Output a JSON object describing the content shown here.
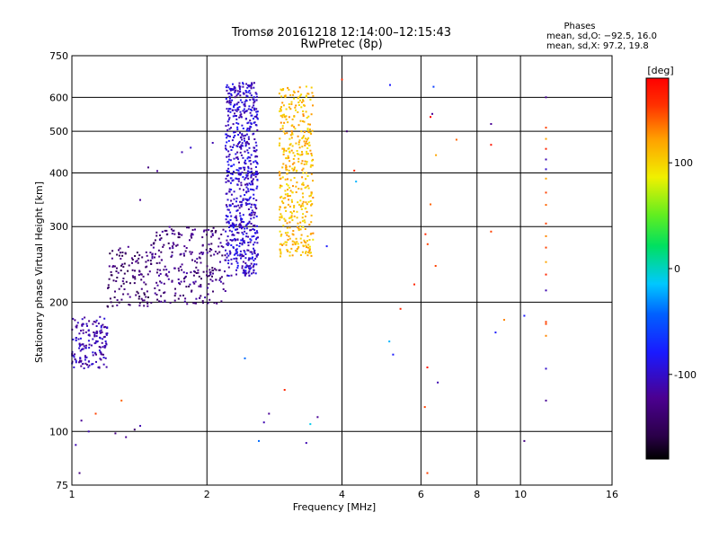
{
  "header": {
    "title": "Tromsø 20161218 12:14:00–12:15:43",
    "subtitle": "RwPretec (8p)"
  },
  "stats": {
    "heading": "Phases",
    "line_o": "mean, sd,O: −92.5, 16.0",
    "line_x": "mean, sd,X:  97.2, 19.8"
  },
  "chart_data": {
    "type": "scatter",
    "xlabel": "Frequency [MHz]",
    "ylabel": "Stationary phase Virtual Height [km]",
    "x_scale": "log",
    "y_scale": "log",
    "xlim": [
      1,
      16
    ],
    "ylim": [
      75,
      750
    ],
    "x_ticks": [
      {
        "v": 1,
        "label": "1"
      },
      {
        "v": 2,
        "label": "2"
      },
      {
        "v": 4,
        "label": "4"
      },
      {
        "v": 6,
        "label": "6"
      },
      {
        "v": 8,
        "label": "8"
      },
      {
        "v": 10,
        "label": "10"
      },
      {
        "v": 16,
        "label": "16"
      }
    ],
    "y_ticks": [
      {
        "v": 75,
        "label": "75"
      },
      {
        "v": 100,
        "label": "100"
      },
      {
        "v": 200,
        "label": "200"
      },
      {
        "v": 300,
        "label": "300"
      },
      {
        "v": 400,
        "label": "400"
      },
      {
        "v": 500,
        "label": "500"
      },
      {
        "v": 600,
        "label": "600"
      },
      {
        "v": 750,
        "label": "750"
      }
    ],
    "grid": true,
    "colorbar": {
      "label": "[deg]",
      "range": [
        -180,
        180
      ],
      "ticks": [
        {
          "v": 100,
          "label": "100"
        },
        {
          "v": 0,
          "label": "0"
        },
        {
          "v": -100,
          "label": "-100"
        }
      ]
    },
    "series": [
      {
        "color_by": "phase_deg",
        "note_blocks": [
          {
            "x": [
              1.0,
              1.2
            ],
            "y": [
              140,
              185
            ],
            "phase": -110,
            "n": 160
          },
          {
            "x": [
              1.2,
              1.5
            ],
            "y": [
              195,
              270
            ],
            "phase": -140,
            "n": 120
          },
          {
            "x": [
              1.5,
              2.2
            ],
            "y": [
              198,
              300
            ],
            "phase": -130,
            "n": 260
          },
          {
            "x": [
              2.2,
              2.6
            ],
            "y": [
              230,
              650
            ],
            "phase": -100,
            "n": 700
          },
          {
            "x": [
              2.9,
              3.45
            ],
            "y": [
              255,
              640
            ],
            "phase": 110,
            "n": 420
          }
        ]
      }
    ],
    "points": [
      [
        1.02,
        93,
        -110
      ],
      [
        1.04,
        80,
        -130
      ],
      [
        1.05,
        106,
        -120
      ],
      [
        1.09,
        100,
        -110
      ],
      [
        1.25,
        99,
        -130
      ],
      [
        1.32,
        97,
        -120
      ],
      [
        1.38,
        101,
        -140
      ],
      [
        1.42,
        103,
        -110
      ],
      [
        1.29,
        118,
        140
      ],
      [
        1.13,
        110,
        150
      ],
      [
        1.42,
        346,
        -120
      ],
      [
        1.48,
        412,
        -130
      ],
      [
        1.55,
        404,
        -120
      ],
      [
        1.76,
        447,
        -110
      ],
      [
        1.84,
        458,
        -100
      ],
      [
        2.06,
        470,
        -110
      ],
      [
        2.43,
        148,
        -40
      ],
      [
        2.61,
        95,
        -40
      ],
      [
        2.68,
        105,
        -110
      ],
      [
        2.75,
        110,
        -120
      ],
      [
        2.98,
        125,
        160
      ],
      [
        3.4,
        104,
        -10
      ],
      [
        3.53,
        108,
        -120
      ],
      [
        3.33,
        94,
        -110
      ],
      [
        3.7,
        270,
        -80
      ],
      [
        4.0,
        660,
        160
      ],
      [
        4.1,
        500,
        -140
      ],
      [
        4.3,
        382,
        -20
      ],
      [
        4.26,
        405,
        160
      ],
      [
        5.12,
        641,
        -80
      ],
      [
        5.1,
        162,
        -20
      ],
      [
        5.2,
        151,
        -80
      ],
      [
        5.4,
        193,
        160
      ],
      [
        5.8,
        220,
        160
      ],
      [
        6.2,
        80,
        150
      ],
      [
        6.14,
        288,
        160
      ],
      [
        6.21,
        273,
        150
      ],
      [
        6.3,
        338,
        140
      ],
      [
        6.3,
        540,
        180
      ],
      [
        6.36,
        549,
        -120
      ],
      [
        6.4,
        635,
        -60
      ],
      [
        6.47,
        243,
        150
      ],
      [
        6.48,
        440,
        120
      ],
      [
        6.12,
        114,
        150
      ],
      [
        6.2,
        141,
        170
      ],
      [
        6.54,
        130,
        -110
      ],
      [
        7.2,
        478,
        140
      ],
      [
        8.6,
        520,
        -120
      ],
      [
        8.6,
        292,
        150
      ],
      [
        8.6,
        465,
        170
      ],
      [
        8.8,
        170,
        -80
      ],
      [
        9.2,
        182,
        130
      ],
      [
        10.2,
        186,
        -80
      ],
      [
        10.2,
        95,
        -130
      ],
      [
        11.4,
        600,
        -120
      ],
      [
        11.4,
        510,
        150
      ],
      [
        11.4,
        480,
        120
      ],
      [
        11.4,
        455,
        160
      ],
      [
        11.4,
        430,
        -110
      ],
      [
        11.4,
        408,
        -100
      ],
      [
        11.4,
        388,
        120
      ],
      [
        11.4,
        360,
        150
      ],
      [
        11.4,
        337,
        140
      ],
      [
        11.4,
        305,
        150
      ],
      [
        11.4,
        285,
        130
      ],
      [
        11.4,
        268,
        150
      ],
      [
        11.4,
        248,
        120
      ],
      [
        11.4,
        232,
        160
      ],
      [
        11.4,
        213,
        -110
      ],
      [
        11.4,
        180,
        150
      ],
      [
        11.4,
        167,
        130
      ],
      [
        11.4,
        140,
        -100
      ],
      [
        11.4,
        118,
        -120
      ],
      [
        11.4,
        178,
        150
      ]
    ]
  },
  "colors": {
    "frame": "#000000",
    "background": "#ffffff"
  }
}
